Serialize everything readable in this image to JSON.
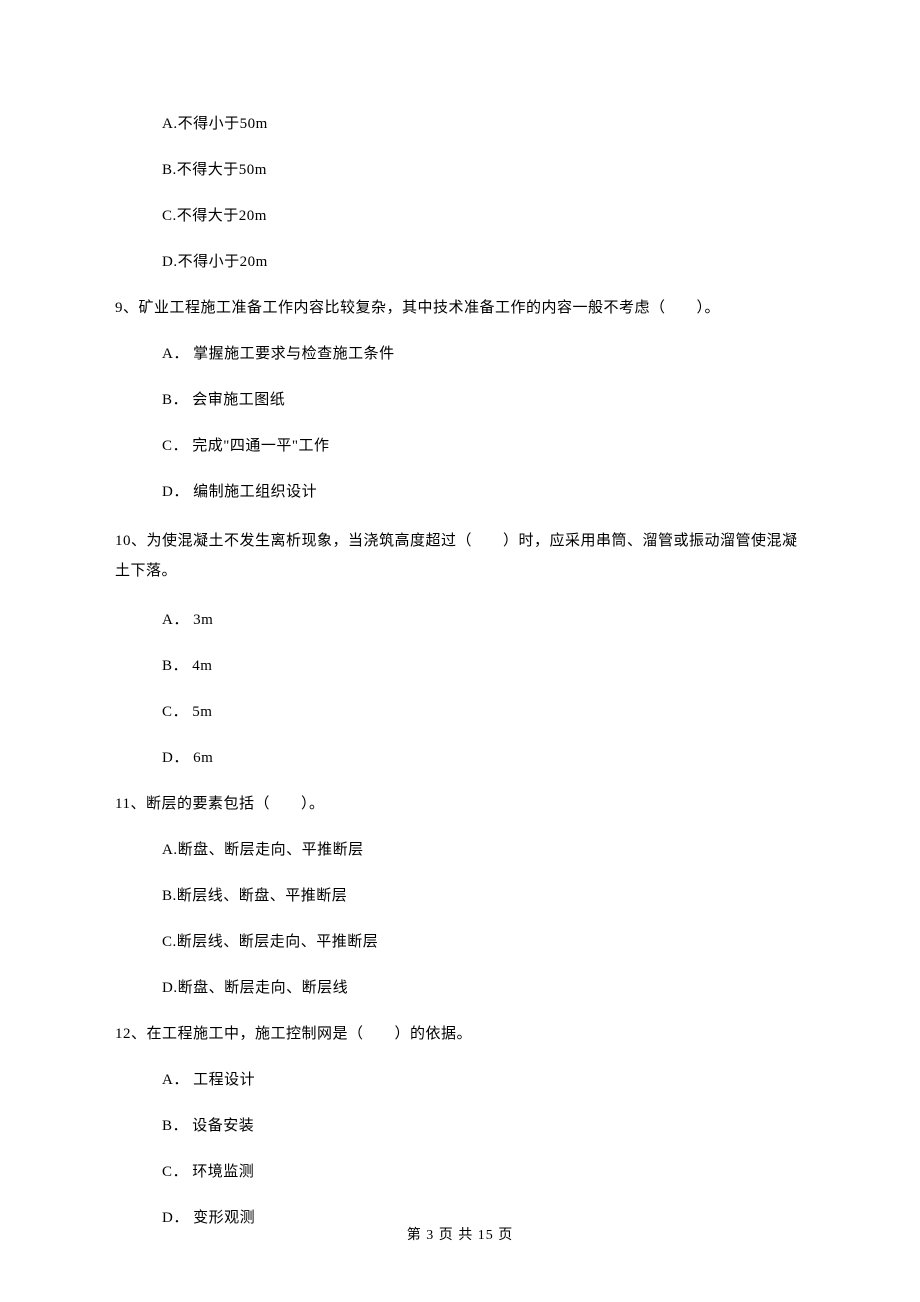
{
  "options_pre": [
    "A.不得小于50m",
    "B.不得大于50m",
    "C.不得大于20m",
    "D.不得小于20m"
  ],
  "q9": {
    "text": "9、矿业工程施工准备工作内容比较复杂，其中技术准备工作的内容一般不考虑（　　）。",
    "options": [
      "A． 掌握施工要求与检查施工条件",
      "B． 会审施工图纸",
      "C． 完成\"四通一平\"工作",
      "D． 编制施工组织设计"
    ]
  },
  "q10": {
    "text": "10、为使混凝土不发生离析现象，当浇筑高度超过（　　）时，应采用串筒、溜管或振动溜管使混凝土下落。",
    "options": [
      "A． 3m",
      "B． 4m",
      "C． 5m",
      "D． 6m"
    ]
  },
  "q11": {
    "text": "11、断层的要素包括（　　）。",
    "options": [
      "A.断盘、断层走向、平推断层",
      "B.断层线、断盘、平推断层",
      "C.断层线、断层走向、平推断层",
      "D.断盘、断层走向、断层线"
    ]
  },
  "q12": {
    "text": "12、在工程施工中，施工控制网是（　　）的依据。",
    "options": [
      "A． 工程设计",
      "B． 设备安装",
      "C． 环境监测",
      "D． 变形观测"
    ]
  },
  "footer": "第 3 页 共 15 页"
}
